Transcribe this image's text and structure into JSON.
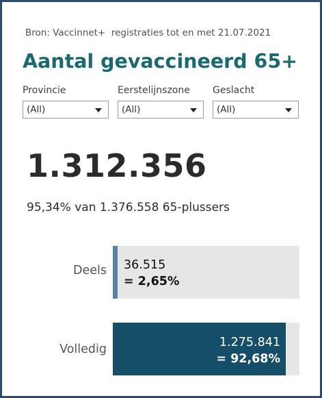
{
  "source_text": "Bron: Vaccinnet+  registraties tot en met 21.07.2021",
  "title": "Aantal gevaccineerd 65+",
  "filters": [
    {
      "label": "Provincie",
      "value": "(All)"
    },
    {
      "label": "Eerstelijnszone",
      "value": "(All)"
    },
    {
      "label": "Geslacht",
      "value": "(All)"
    }
  ],
  "total": "1.312.356",
  "subline": "95,34% van 1.376.558 65-plussers",
  "bars": [
    {
      "label": "Deels",
      "count": "36.515",
      "pct_text": "= 2,65%",
      "fraction": 0.0265,
      "color": "#5b7fa8",
      "text_color": "#111111"
    },
    {
      "label": "Volledig",
      "count": "1.275.841",
      "pct_text": "= 92,68%",
      "fraction": 0.9268,
      "color": "#154e68",
      "text_color": "#ffffff"
    }
  ]
}
